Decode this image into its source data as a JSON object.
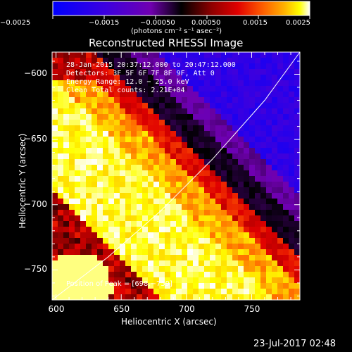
{
  "colors": {
    "background": "#000000",
    "text": "#ffffff"
  },
  "colorbar": {
    "ticks": [
      "−0.0025",
      "−0.0015",
      "−0.00050",
      "0.00050",
      "0.0015",
      "0.0025"
    ],
    "unit_label": "(photons cm⁻² s⁻¹ asec⁻²)",
    "range": [
      -0.0025,
      0.0025
    ],
    "palette": [
      "#0000ff",
      "#3a00e0",
      "#7000b0",
      "#000000",
      "#900000",
      "#e00000",
      "#ff6000",
      "#ffb000",
      "#ffff00",
      "#ffffff"
    ]
  },
  "chart_data": {
    "type": "heatmap",
    "title": "Reconstructed RHESSI Image",
    "xlabel": "Heliocentric X (arcsec)",
    "ylabel": "Heliocentric Y (arcsec)",
    "xlim": [
      597,
      787
    ],
    "ylim": [
      -773,
      -583
    ],
    "xticks": [
      600,
      650,
      700,
      750
    ],
    "yticks": [
      -600,
      -650,
      -700,
      -750
    ],
    "annotations": [
      "28-Jan-2015 20:37:12.000 to 20:47:12.000",
      "Detectors: 3F 5F 6F 7F 8F 9F, Att 0",
      "Energy Range: 12.0 − 25.0 keV",
      "Clean    Total counts: 2.21E+04"
    ],
    "peak_label": "Position of Peak = [698,−759]",
    "peak": {
      "x": 698,
      "y": -759
    },
    "limb_curve": [
      [
        597,
        -773
      ],
      [
        640,
        -740
      ],
      [
        680,
        -705
      ],
      [
        720,
        -665
      ],
      [
        760,
        -620
      ],
      [
        787,
        -583
      ]
    ],
    "description_grid": "bright diagonal band of positive flux from lower-left to upper-right boundary, negative (blue/purple) region in upper-right"
  },
  "footer": {
    "timestamp": "23-Jul-2017 02:48"
  }
}
